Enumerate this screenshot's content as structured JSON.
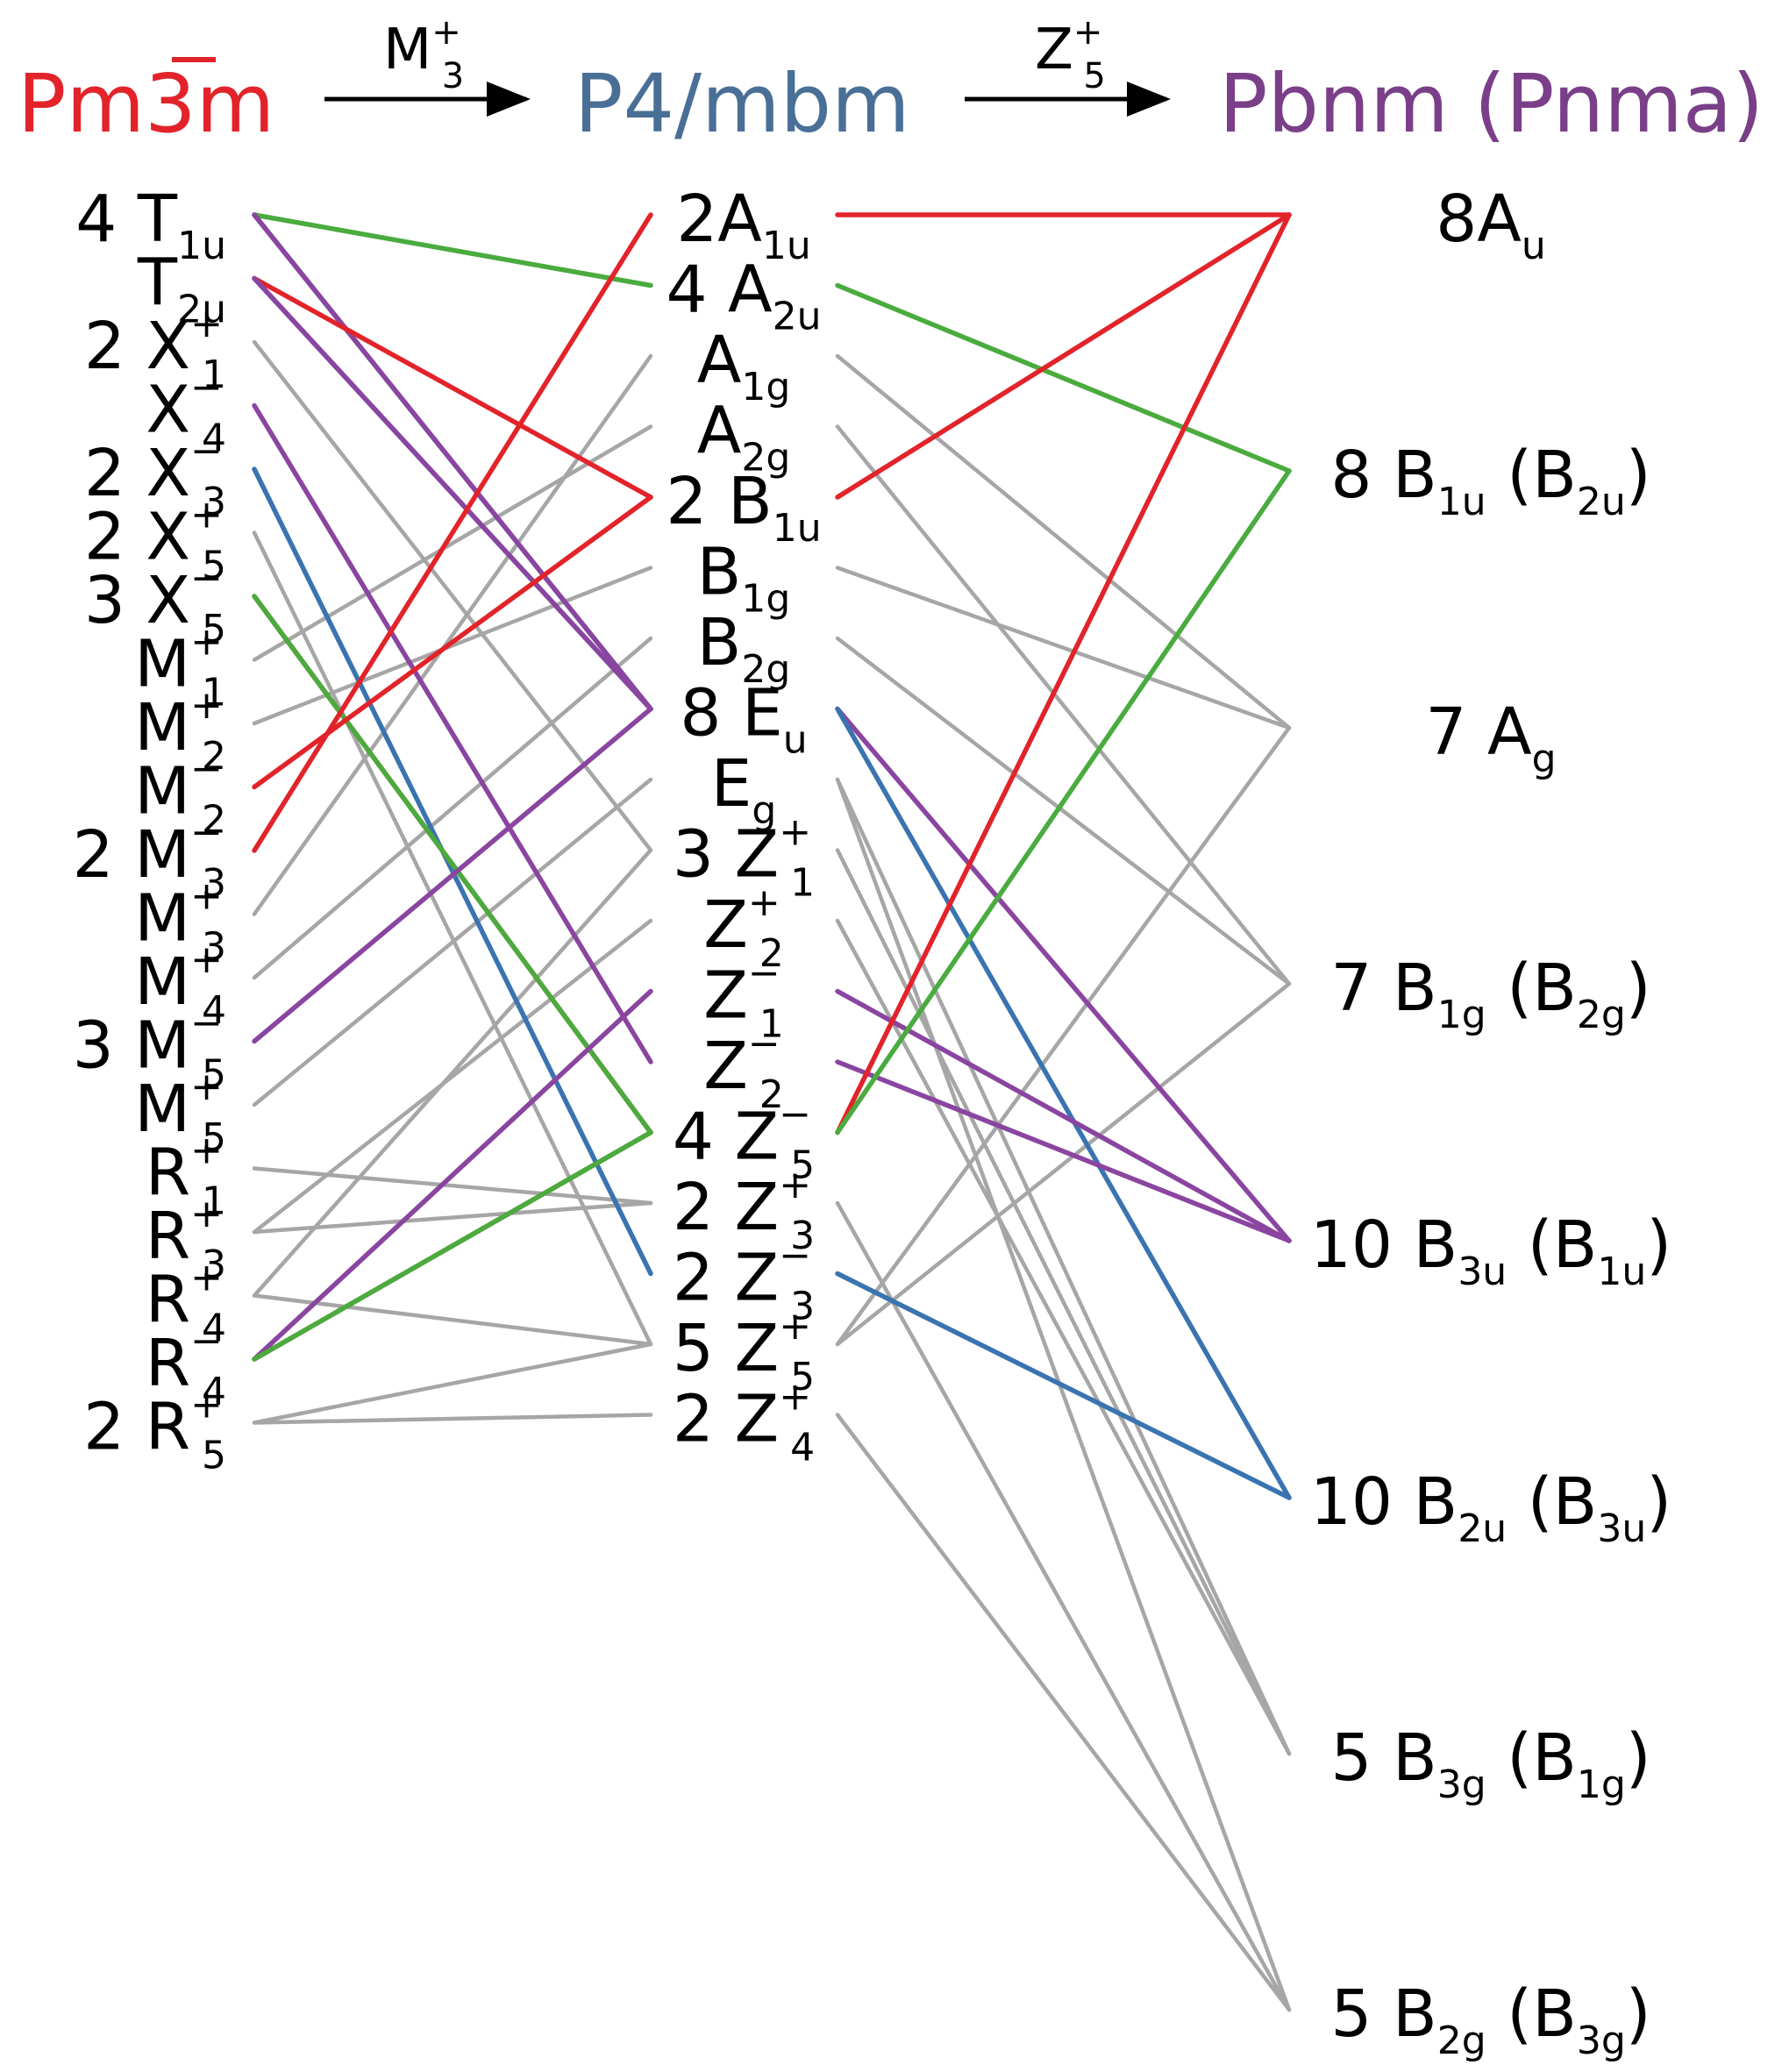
{
  "headers": {
    "cubic": "Pm3m",
    "tetragonal": "P4/mbm",
    "orthorhombic": "Pbnm (Pnma)",
    "transition1": {
      "base": "M",
      "sub": "3",
      "sup": "+"
    },
    "transition2": {
      "base": "Z",
      "sub": "5",
      "sup": "+"
    }
  },
  "colors": {
    "red": "#e2232a",
    "blue": "#3a74b0",
    "purple": "#8a45a0",
    "green": "#4aab3e",
    "gray": "#a6a6a6",
    "arrow": "#000000",
    "cubicHeader": "#e2232a",
    "tetragonalHeader": "#4a6f96",
    "orthorhombicHeader": "#7a3f88"
  },
  "left": [
    {
      "id": "L0",
      "coef": "4",
      "base": "T",
      "sub": "1u",
      "sup": ""
    },
    {
      "id": "L1",
      "coef": "",
      "base": "T",
      "sub": "2u",
      "sup": ""
    },
    {
      "id": "L2",
      "coef": "2",
      "base": "X",
      "sub": "1",
      "sup": "+"
    },
    {
      "id": "L3",
      "coef": "",
      "base": "X",
      "sub": "4",
      "sup": "−"
    },
    {
      "id": "L4",
      "coef": "2",
      "base": "X",
      "sub": "3",
      "sup": "−"
    },
    {
      "id": "L5",
      "coef": "2",
      "base": "X",
      "sub": "5",
      "sup": "+"
    },
    {
      "id": "L6",
      "coef": "3",
      "base": "X",
      "sub": "5",
      "sup": "−"
    },
    {
      "id": "L7",
      "coef": "",
      "base": "M",
      "sub": "1",
      "sup": "+"
    },
    {
      "id": "L8",
      "coef": "",
      "base": "M",
      "sub": "2",
      "sup": "+"
    },
    {
      "id": "L9",
      "coef": "",
      "base": "M",
      "sub": "2",
      "sup": "−"
    },
    {
      "id": "L10",
      "coef": "2",
      "base": "M",
      "sub": "3",
      "sup": "−"
    },
    {
      "id": "L11",
      "coef": "",
      "base": "M",
      "sub": "3",
      "sup": "+"
    },
    {
      "id": "L12",
      "coef": "",
      "base": "M",
      "sub": "4",
      "sup": "+"
    },
    {
      "id": "L13",
      "coef": "3",
      "base": "M",
      "sub": "5",
      "sup": "−"
    },
    {
      "id": "L14",
      "coef": "",
      "base": "M",
      "sub": "5",
      "sup": "+"
    },
    {
      "id": "L15",
      "coef": "",
      "base": "R",
      "sub": "1",
      "sup": "+"
    },
    {
      "id": "L16",
      "coef": "",
      "base": "R",
      "sub": "3",
      "sup": "+"
    },
    {
      "id": "L17",
      "coef": "",
      "base": "R",
      "sub": "4",
      "sup": "+"
    },
    {
      "id": "L18",
      "coef": "",
      "base": "R",
      "sub": "4",
      "sup": "−"
    },
    {
      "id": "L19",
      "coef": "2",
      "base": "R",
      "sub": "5",
      "sup": "+"
    }
  ],
  "middle": [
    {
      "id": "M0",
      "coef": "2",
      "base": "A",
      "sub": "1u",
      "sup": "",
      "tight": true
    },
    {
      "id": "M1",
      "coef": "4",
      "base": "A",
      "sub": "2u",
      "sup": ""
    },
    {
      "id": "M2",
      "coef": "",
      "base": "A",
      "sub": "1g",
      "sup": ""
    },
    {
      "id": "M3",
      "coef": "",
      "base": "A",
      "sub": "2g",
      "sup": ""
    },
    {
      "id": "M4",
      "coef": "2",
      "base": "B",
      "sub": "1u",
      "sup": ""
    },
    {
      "id": "M5",
      "coef": "",
      "base": "B",
      "sub": "1g",
      "sup": ""
    },
    {
      "id": "M6",
      "coef": "",
      "base": "B",
      "sub": "2g",
      "sup": ""
    },
    {
      "id": "M7",
      "coef": "8",
      "base": "E",
      "sub": "u",
      "sup": ""
    },
    {
      "id": "M8",
      "coef": "",
      "base": "E",
      "sub": "g",
      "sup": ""
    },
    {
      "id": "M9",
      "coef": "3",
      "base": "Z",
      "sub": "1",
      "sup": "+"
    },
    {
      "id": "M10",
      "coef": "",
      "base": "Z",
      "sub": "2",
      "sup": "+"
    },
    {
      "id": "M11",
      "coef": "",
      "base": "Z",
      "sub": "1",
      "sup": "−"
    },
    {
      "id": "M12",
      "coef": "",
      "base": "Z",
      "sub": "2",
      "sup": "−"
    },
    {
      "id": "M13",
      "coef": "4",
      "base": "Z",
      "sub": "5",
      "sup": "−"
    },
    {
      "id": "M14",
      "coef": "2",
      "base": "Z",
      "sub": "3",
      "sup": "+"
    },
    {
      "id": "M15",
      "coef": "2",
      "base": "Z",
      "sub": "3",
      "sup": "−"
    },
    {
      "id": "M16",
      "coef": "5",
      "base": "Z",
      "sub": "5",
      "sup": "+"
    },
    {
      "id": "M17",
      "coef": "2",
      "base": "Z",
      "sub": "4",
      "sup": "+"
    }
  ],
  "right": [
    {
      "id": "R0",
      "coef": "8",
      "base": "A",
      "sub": "u",
      "sup": "",
      "tight": true,
      "alt": ""
    },
    {
      "id": "R1",
      "coef": "8",
      "base": "B",
      "sub": "1u",
      "sup": "",
      "alt": "B",
      "altSub": "2u"
    },
    {
      "id": "R2",
      "coef": "7",
      "base": "A",
      "sub": "g",
      "sup": "",
      "alt": ""
    },
    {
      "id": "R3",
      "coef": "7",
      "base": "B",
      "sub": "1g",
      "sup": "",
      "alt": "B",
      "altSub": "2g"
    },
    {
      "id": "R4",
      "coef": "10",
      "base": "B",
      "sub": "3u",
      "sup": "",
      "alt": "B",
      "altSub": "1u"
    },
    {
      "id": "R5",
      "coef": "10",
      "base": "B",
      "sub": "2u",
      "sup": "",
      "alt": "B",
      "altSub": "3u"
    },
    {
      "id": "R6",
      "coef": "5",
      "base": "B",
      "sub": "3g",
      "sup": "",
      "alt": "B",
      "altSub": "1g"
    },
    {
      "id": "R7",
      "coef": "5",
      "base": "B",
      "sub": "2g",
      "sup": "",
      "alt": "B",
      "altSub": "3g"
    }
  ],
  "links_left_middle": [
    {
      "from": "L0",
      "to": "M1",
      "color": "green"
    },
    {
      "from": "L0",
      "to": "M7",
      "color": "blue"
    },
    {
      "from": "L0",
      "to": "M7",
      "color": "purple"
    },
    {
      "from": "L1",
      "to": "M4",
      "color": "red"
    },
    {
      "from": "L1",
      "to": "M7",
      "color": "blue"
    },
    {
      "from": "L1",
      "to": "M7",
      "color": "purple"
    },
    {
      "from": "L2",
      "to": "M9",
      "color": "gray"
    },
    {
      "from": "L3",
      "to": "M12",
      "color": "purple"
    },
    {
      "from": "L4",
      "to": "M15",
      "color": "blue"
    },
    {
      "from": "L5",
      "to": "M16",
      "color": "gray"
    },
    {
      "from": "L6",
      "to": "M13",
      "color": "red"
    },
    {
      "from": "L6",
      "to": "M13",
      "color": "green"
    },
    {
      "from": "L7",
      "to": "M3",
      "color": "gray"
    },
    {
      "from": "L8",
      "to": "M5",
      "color": "gray"
    },
    {
      "from": "L9",
      "to": "M4",
      "color": "red"
    },
    {
      "from": "L10",
      "to": "M0",
      "color": "red"
    },
    {
      "from": "L11",
      "to": "M2",
      "color": "gray"
    },
    {
      "from": "L12",
      "to": "M6",
      "color": "gray"
    },
    {
      "from": "L13",
      "to": "M7",
      "color": "purple"
    },
    {
      "from": "L14",
      "to": "M8",
      "color": "gray"
    },
    {
      "from": "L15",
      "to": "M14",
      "color": "gray"
    },
    {
      "from": "L16",
      "to": "M10",
      "color": "gray"
    },
    {
      "from": "L16",
      "to": "M14",
      "color": "gray"
    },
    {
      "from": "L17",
      "to": "M9",
      "color": "gray"
    },
    {
      "from": "L17",
      "to": "M16",
      "color": "gray"
    },
    {
      "from": "L18",
      "to": "M11",
      "color": "purple"
    },
    {
      "from": "L18",
      "to": "M13",
      "color": "red"
    },
    {
      "from": "L18",
      "to": "M13",
      "color": "green"
    },
    {
      "from": "L19",
      "to": "M16",
      "color": "gray"
    },
    {
      "from": "L19",
      "to": "M17",
      "color": "gray"
    }
  ],
  "links_middle_right": [
    {
      "from": "M0",
      "to": "R0",
      "color": "red"
    },
    {
      "from": "M1",
      "to": "R1",
      "color": "green"
    },
    {
      "from": "M2",
      "to": "R2",
      "color": "gray"
    },
    {
      "from": "M3",
      "to": "R3",
      "color": "gray"
    },
    {
      "from": "M4",
      "to": "R0",
      "color": "red"
    },
    {
      "from": "M5",
      "to": "R2",
      "color": "gray"
    },
    {
      "from": "M6",
      "to": "R3",
      "color": "gray"
    },
    {
      "from": "M7",
      "to": "R4",
      "color": "purple"
    },
    {
      "from": "M7",
      "to": "R5",
      "color": "blue"
    },
    {
      "from": "M8",
      "to": "R6",
      "color": "gray"
    },
    {
      "from": "M8",
      "to": "R7",
      "color": "gray"
    },
    {
      "from": "M9",
      "to": "R6",
      "color": "gray"
    },
    {
      "from": "M10",
      "to": "R6",
      "color": "gray"
    },
    {
      "from": "M11",
      "to": "R4",
      "color": "purple"
    },
    {
      "from": "M12",
      "to": "R4",
      "color": "purple"
    },
    {
      "from": "M13",
      "to": "R0",
      "color": "red"
    },
    {
      "from": "M13",
      "to": "R1",
      "color": "green"
    },
    {
      "from": "M14",
      "to": "R7",
      "color": "gray"
    },
    {
      "from": "M15",
      "to": "R5",
      "color": "blue"
    },
    {
      "from": "M16",
      "to": "R2",
      "color": "gray"
    },
    {
      "from": "M16",
      "to": "R3",
      "color": "gray"
    },
    {
      "from": "M17",
      "to": "R7",
      "color": "gray"
    }
  ]
}
